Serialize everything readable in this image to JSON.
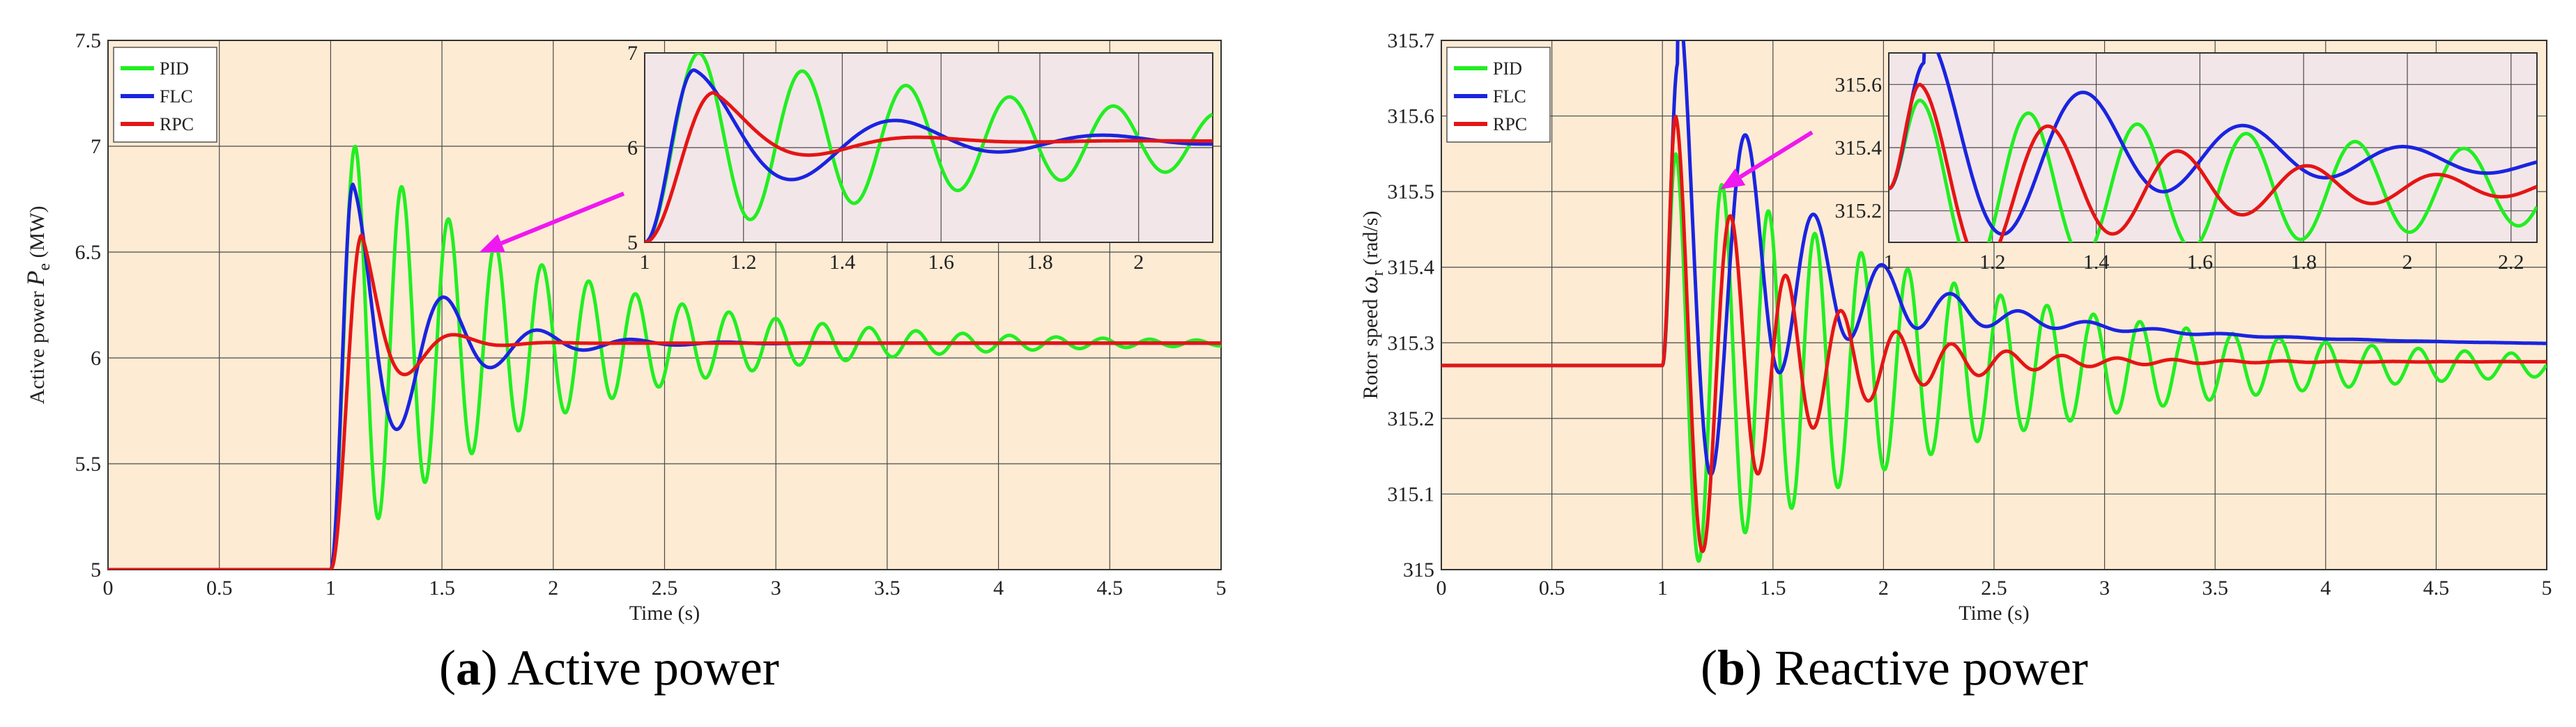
{
  "colors": {
    "plot_bg": "#fdebd3",
    "inset_bg": "#f3e6e8",
    "grid": "#4a4a4a",
    "pid": "#22ee22",
    "flc": "#1a24e0",
    "rpc": "#e51515",
    "arrow": "#f018f0"
  },
  "captions": {
    "a": {
      "letter": "a",
      "text": " Active power"
    },
    "b": {
      "letter": "b",
      "text": " Reactive power"
    }
  },
  "chart_data": [
    {
      "id": "a",
      "type": "line",
      "xlabel": "Time (s)",
      "ylabel_prefix": "Active power ",
      "ylabel_symbol": "P",
      "ylabel_sub": "e",
      "ylabel_suffix": " (MW)",
      "xlim": [
        0,
        5
      ],
      "ylim": [
        5,
        7.5
      ],
      "x_ticks": [
        "0",
        "0.5",
        "1",
        "1.5",
        "2",
        "2.5",
        "3",
        "3.5",
        "4",
        "4.5",
        "5"
      ],
      "y_ticks": [
        "5",
        "5.5",
        "6",
        "6.5",
        "7",
        "7.5"
      ],
      "grid": true,
      "legend_position": "top-left",
      "legend": [
        "PID",
        "FLC",
        "RPC"
      ],
      "model": {
        "step_time": 1.0,
        "initial": 5.0,
        "final": 6.07
      },
      "series": [
        {
          "name": "PID",
          "peak": 7.0,
          "peak_time": 1.11,
          "period": 0.21,
          "decay": 1.1
        },
        {
          "name": "FLC",
          "peak": 6.82,
          "peak_time": 1.1,
          "period": 0.42,
          "decay": 3.0
        },
        {
          "name": "RPC",
          "peak": 6.58,
          "peak_time": 1.14,
          "period": 0.44,
          "decay": 6.0
        }
      ],
      "inset": {
        "xlim": [
          1,
          2.15
        ],
        "ylim": [
          5,
          7
        ],
        "x_ticks": [
          "1",
          "1.2",
          "1.4",
          "1.6",
          "1.8",
          "2"
        ],
        "y_ticks": [
          "5",
          "6",
          "7"
        ]
      }
    },
    {
      "id": "b",
      "type": "line",
      "xlabel": "Time (s)",
      "ylabel_prefix": "Rotor speed ",
      "ylabel_symbol": "ω",
      "ylabel_sub": "r",
      "ylabel_suffix": " (rad/s)",
      "xlim": [
        0,
        5
      ],
      "ylim": [
        315,
        315.7
      ],
      "x_ticks": [
        "0",
        "0.5",
        "1",
        "1.5",
        "2",
        "2.5",
        "3",
        "3.5",
        "4",
        "4.5",
        "5"
      ],
      "y_ticks": [
        "315",
        "315.1",
        "315.2",
        "315.3",
        "315.4",
        "315.5",
        "315.6",
        "315.7"
      ],
      "grid": true,
      "legend_position": "top-left",
      "legend": [
        "PID",
        "FLC",
        "RPC"
      ],
      "model": {
        "step_time": 1.0,
        "initial": 315.27
      },
      "series": [
        {
          "name": "PID",
          "final": 315.27,
          "peak": 315.55,
          "peak_time": 1.06,
          "period": 0.21,
          "decay": 0.75
        },
        {
          "name": "FLC",
          "final": 315.295,
          "peak": 315.67,
          "peak_time": 1.07,
          "period": 0.31,
          "decay": 2.3,
          "drift_start": 315.39,
          "drift_rate": 0.9
        },
        {
          "name": "RPC",
          "final": 315.275,
          "peak": 315.6,
          "peak_time": 1.06,
          "period": 0.25,
          "decay": 2.1
        }
      ],
      "inset": {
        "xlim": [
          1,
          2.25
        ],
        "ylim": [
          315.1,
          315.7
        ],
        "x_ticks": [
          "1",
          "1.2",
          "1.4",
          "1.6",
          "1.8",
          "2",
          "2.2"
        ],
        "y_ticks": [
          "315.2",
          "315.4",
          "315.6"
        ]
      }
    }
  ]
}
